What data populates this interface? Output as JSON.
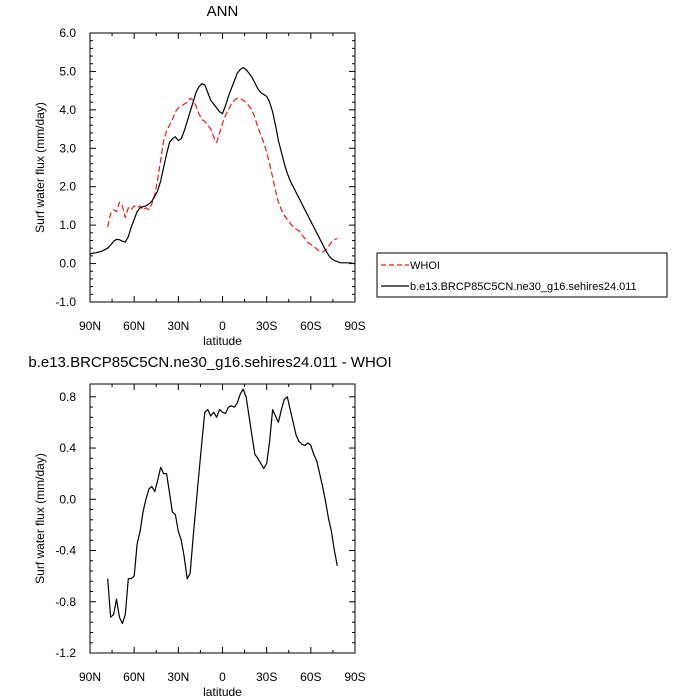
{
  "chart_data": [
    {
      "type": "line",
      "title": "ANN",
      "xlabel": "latitude",
      "ylabel": "Surf water flux (mm/day)",
      "xlim": [
        90,
        -90
      ],
      "ylim": [
        -1.0,
        6.0
      ],
      "xticks": [
        90,
        60,
        30,
        0,
        -30,
        -60,
        -90
      ],
      "xtick_labels": [
        "90N",
        "60N",
        "30N",
        "0",
        "30S",
        "60S",
        "90S"
      ],
      "yticks": [
        -1.0,
        0.0,
        1.0,
        2.0,
        3.0,
        4.0,
        5.0,
        6.0
      ],
      "ytick_labels": [
        "-1.0",
        "0.0",
        "1.0",
        "2.0",
        "3.0",
        "4.0",
        "5.0",
        "6.0"
      ],
      "grid": false,
      "legend_placement": "outside-right",
      "series": [
        {
          "name": "WHOI",
          "color": "#e31a1c",
          "style": "dashed",
          "x": [
            78,
            76,
            74,
            72,
            70,
            68,
            66,
            64,
            62,
            60,
            58,
            56,
            54,
            52,
            50,
            48,
            46,
            44,
            42,
            40,
            38,
            36,
            34,
            32,
            30,
            28,
            26,
            24,
            22,
            20,
            18,
            16,
            14,
            12,
            10,
            8,
            6,
            4,
            2,
            0,
            -2,
            -4,
            -6,
            -8,
            -10,
            -12,
            -14,
            -16,
            -18,
            -20,
            -22,
            -24,
            -26,
            -28,
            -30,
            -32,
            -34,
            -36,
            -38,
            -40,
            -42,
            -44,
            -46,
            -48,
            -50,
            -52,
            -54,
            -56,
            -58,
            -60,
            -62,
            -64,
            -66,
            -68,
            -70,
            -72,
            -74,
            -76,
            -78
          ],
          "y": [
            0.95,
            1.3,
            1.4,
            1.35,
            1.6,
            1.5,
            1.2,
            1.45,
            1.4,
            1.5,
            1.45,
            1.5,
            1.4,
            1.45,
            1.4,
            1.55,
            1.8,
            2.2,
            2.7,
            3.2,
            3.45,
            3.6,
            3.75,
            3.95,
            4.05,
            4.1,
            4.15,
            4.2,
            4.3,
            4.25,
            4.1,
            3.9,
            3.75,
            3.7,
            3.6,
            3.5,
            3.3,
            3.15,
            3.4,
            3.65,
            3.85,
            4.0,
            4.15,
            4.25,
            4.3,
            4.3,
            4.25,
            4.2,
            4.1,
            4.0,
            3.8,
            3.55,
            3.35,
            3.15,
            2.9,
            2.6,
            2.25,
            1.9,
            1.6,
            1.4,
            1.25,
            1.15,
            1.05,
            0.95,
            0.9,
            0.85,
            0.75,
            0.65,
            0.55,
            0.5,
            0.45,
            0.38,
            0.32,
            0.3,
            0.35,
            0.45,
            0.55,
            0.62,
            0.65
          ]
        },
        {
          "name": "b.e13.BRCP85C5CN.ne30_g16.sehires24.011",
          "color": "#000000",
          "style": "solid",
          "x": [
            90,
            88,
            86,
            84,
            82,
            80,
            78,
            76,
            74,
            72,
            70,
            68,
            66,
            64,
            62,
            60,
            58,
            56,
            54,
            52,
            50,
            48,
            46,
            44,
            42,
            40,
            38,
            36,
            34,
            32,
            30,
            28,
            26,
            24,
            22,
            20,
            18,
            16,
            14,
            12,
            10,
            8,
            6,
            4,
            2,
            0,
            -2,
            -4,
            -6,
            -8,
            -10,
            -12,
            -14,
            -16,
            -18,
            -20,
            -22,
            -24,
            -26,
            -28,
            -30,
            -32,
            -34,
            -36,
            -38,
            -40,
            -42,
            -44,
            -46,
            -48,
            -50,
            -52,
            -54,
            -56,
            -58,
            -60,
            -62,
            -64,
            -66,
            -68,
            -70,
            -72,
            -74,
            -76,
            -78,
            -80,
            -82,
            -84,
            -86,
            -88,
            -90
          ],
          "y": [
            0.25,
            0.27,
            0.28,
            0.3,
            0.32,
            0.36,
            0.4,
            0.48,
            0.58,
            0.63,
            0.62,
            0.58,
            0.56,
            0.7,
            0.95,
            1.15,
            1.35,
            1.45,
            1.48,
            1.5,
            1.55,
            1.62,
            1.75,
            1.9,
            2.15,
            2.5,
            2.85,
            3.15,
            3.25,
            3.3,
            3.2,
            3.25,
            3.45,
            3.7,
            3.95,
            4.2,
            4.45,
            4.6,
            4.68,
            4.65,
            4.45,
            4.25,
            4.15,
            4.05,
            3.95,
            3.9,
            4.1,
            4.35,
            4.55,
            4.75,
            4.95,
            5.05,
            5.1,
            5.05,
            4.95,
            4.85,
            4.7,
            4.55,
            4.45,
            4.4,
            4.35,
            4.2,
            3.95,
            3.6,
            3.2,
            2.9,
            2.6,
            2.35,
            2.15,
            2.0,
            1.85,
            1.7,
            1.55,
            1.4,
            1.25,
            1.1,
            0.95,
            0.8,
            0.65,
            0.5,
            0.35,
            0.22,
            0.13,
            0.08,
            0.05,
            0.02,
            0.02,
            0.02,
            0.02,
            0.01,
            0.0
          ]
        }
      ]
    },
    {
      "type": "line",
      "title": "b.e13.BRCP85C5CN.ne30_g16.sehires24.011 - WHOI",
      "xlabel": "latitude",
      "ylabel": "Surf water flux (mm/day)",
      "xlim": [
        90,
        -90
      ],
      "ylim": [
        -1.2,
        0.9
      ],
      "xticks": [
        90,
        60,
        30,
        0,
        -30,
        -60,
        -90
      ],
      "xtick_labels": [
        "90N",
        "60N",
        "30N",
        "0",
        "30S",
        "60S",
        "90S"
      ],
      "yticks": [
        -1.2,
        -0.8,
        -0.4,
        0.0,
        0.4,
        0.8
      ],
      "ytick_labels": [
        "-1.2",
        "-0.8",
        "-0.4",
        "0.0",
        "0.4",
        "0.8"
      ],
      "grid": false,
      "series": [
        {
          "color": "#000000",
          "style": "solid",
          "x": [
            78,
            76,
            74,
            72,
            70,
            68,
            66,
            64,
            62,
            60,
            58,
            56,
            54,
            52,
            50,
            48,
            46,
            44,
            42,
            40,
            38,
            36,
            34,
            32,
            30,
            28,
            26,
            24,
            22,
            20,
            18,
            16,
            14,
            12,
            10,
            8,
            6,
            4,
            2,
            0,
            -2,
            -4,
            -6,
            -8,
            -10,
            -12,
            -14,
            -16,
            -18,
            -20,
            -22,
            -24,
            -26,
            -28,
            -30,
            -32,
            -34,
            -36,
            -38,
            -40,
            -42,
            -44,
            -46,
            -48,
            -50,
            -52,
            -54,
            -56,
            -58,
            -60,
            -62,
            -64,
            -66,
            -68,
            -70,
            -72,
            -74,
            -76,
            -78
          ],
          "y": [
            -0.62,
            -0.92,
            -0.9,
            -0.78,
            -0.92,
            -0.97,
            -0.9,
            -0.62,
            -0.62,
            -0.6,
            -0.35,
            -0.25,
            -0.1,
            0.0,
            0.08,
            0.1,
            0.06,
            0.15,
            0.25,
            0.2,
            0.2,
            0.05,
            -0.1,
            -0.12,
            -0.25,
            -0.32,
            -0.45,
            -0.62,
            -0.58,
            -0.3,
            -0.05,
            0.2,
            0.45,
            0.68,
            0.7,
            0.65,
            0.68,
            0.64,
            0.7,
            0.68,
            0.67,
            0.72,
            0.73,
            0.72,
            0.75,
            0.82,
            0.86,
            0.8,
            0.65,
            0.5,
            0.35,
            0.32,
            0.28,
            0.24,
            0.28,
            0.45,
            0.7,
            0.65,
            0.6,
            0.7,
            0.78,
            0.8,
            0.7,
            0.6,
            0.5,
            0.45,
            0.43,
            0.42,
            0.44,
            0.42,
            0.35,
            0.3,
            0.2,
            0.1,
            -0.02,
            -0.15,
            -0.25,
            -0.4,
            -0.52
          ]
        }
      ]
    }
  ]
}
